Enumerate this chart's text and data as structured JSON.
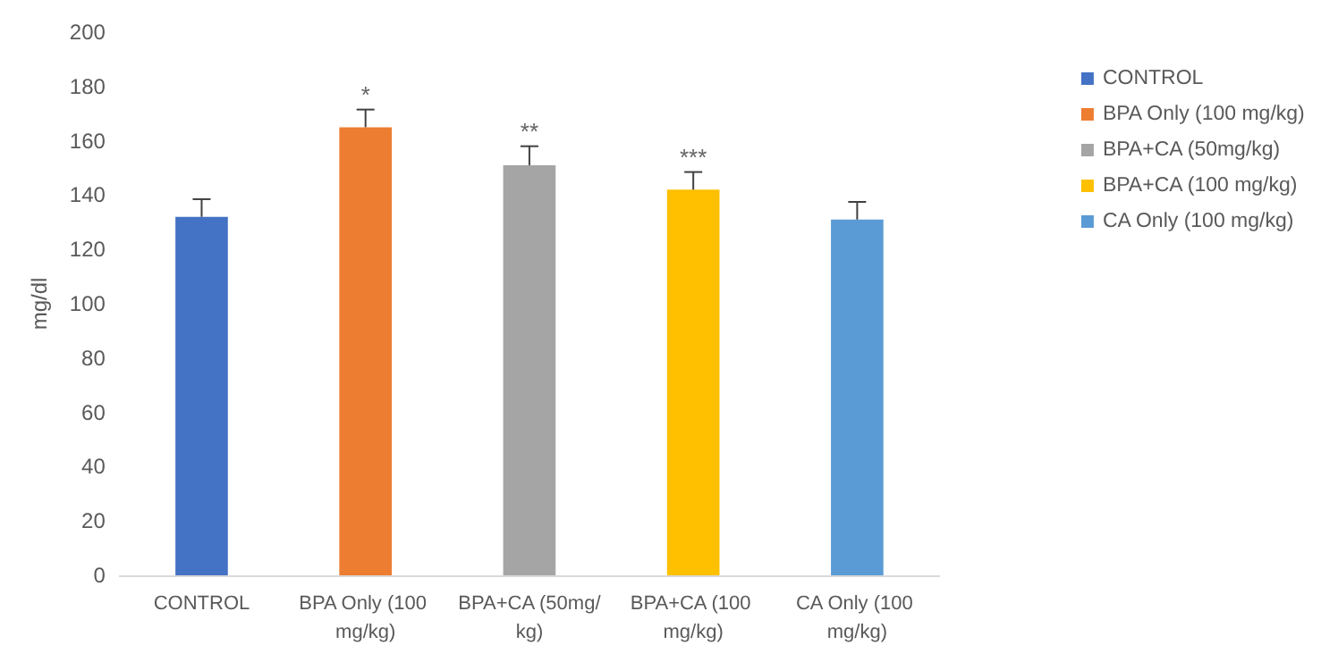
{
  "chart_data": {
    "type": "bar",
    "ylabel": "mg/dl",
    "categories": [
      "CONTROL",
      "BPA Only (100 mg/kg)",
      "BPA+CA (50mg/kg)",
      "BPA+CA (100 mg/kg)",
      "CA Only (100 mg/kg)"
    ],
    "series": [
      {
        "name": "CONTROL",
        "color": "#4472c4",
        "values": [
          132,
          null,
          null,
          null,
          null
        ],
        "errors": [
          [
            132,
            138.5
          ],
          null,
          null,
          null,
          null
        ]
      },
      {
        "name": "BPA Only (100 mg/kg)",
        "color": "#ed7d31",
        "values": [
          null,
          165,
          null,
          null,
          null
        ],
        "errors": [
          null,
          [
            165,
            171.5
          ],
          null,
          null,
          null
        ]
      },
      {
        "name": "BPA+CA (50mg/kg)",
        "color": "#a5a5a5",
        "values": [
          null,
          null,
          151,
          null,
          null
        ],
        "errors": [
          null,
          null,
          [
            151,
            158
          ],
          null,
          null
        ]
      },
      {
        "name": "BPA+CA (100 mg/kg)",
        "color": "#ffc000",
        "values": [
          null,
          null,
          null,
          142,
          null
        ],
        "errors": [
          null,
          null,
          null,
          [
            142,
            148.5
          ],
          null
        ]
      },
      {
        "name": "CA Only (100 mg/kg)",
        "color": "#5b9bd5",
        "values": [
          null,
          null,
          null,
          null,
          131
        ],
        "errors": [
          null,
          null,
          null,
          null,
          [
            131,
            137.5
          ]
        ]
      }
    ],
    "stacked": true,
    "ylim": [
      0,
      200
    ],
    "yticks": [
      0,
      20,
      40,
      60,
      80,
      100,
      120,
      140,
      160,
      180,
      200
    ],
    "grid": false,
    "legend": "right",
    "annotations": [
      {
        "text": "*",
        "x": "BPA Only (100 mg/kg)",
        "y": 171.5
      },
      {
        "text": "**",
        "x": "BPA+CA (50mg/kg)",
        "y": 158
      },
      {
        "text": "***",
        "x": "BPA+CA (100 mg/kg)",
        "y": 148.5
      }
    ]
  }
}
